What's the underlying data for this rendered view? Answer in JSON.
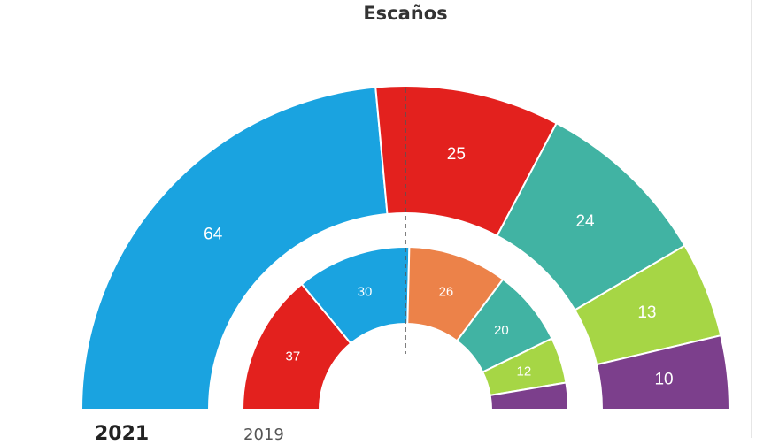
{
  "title": "Escaños",
  "chart_data": {
    "type": "pie",
    "rings": [
      {
        "name": "2021",
        "values": [
          64,
          25,
          24,
          13,
          10
        ],
        "colors": [
          "#1aa3e0",
          "#e3211e",
          "#41b3a3",
          "#a6d645",
          "#7c3f8c"
        ]
      },
      {
        "name": "2019",
        "values": [
          37,
          30,
          26,
          20,
          12,
          7
        ],
        "labels": [
          "37",
          "30",
          "26",
          "20",
          "12",
          ""
        ],
        "colors": [
          "#e3211e",
          "#1aa3e0",
          "#ec8249",
          "#41b3a3",
          "#a6d645",
          "#7c3f8c"
        ]
      }
    ]
  }
}
